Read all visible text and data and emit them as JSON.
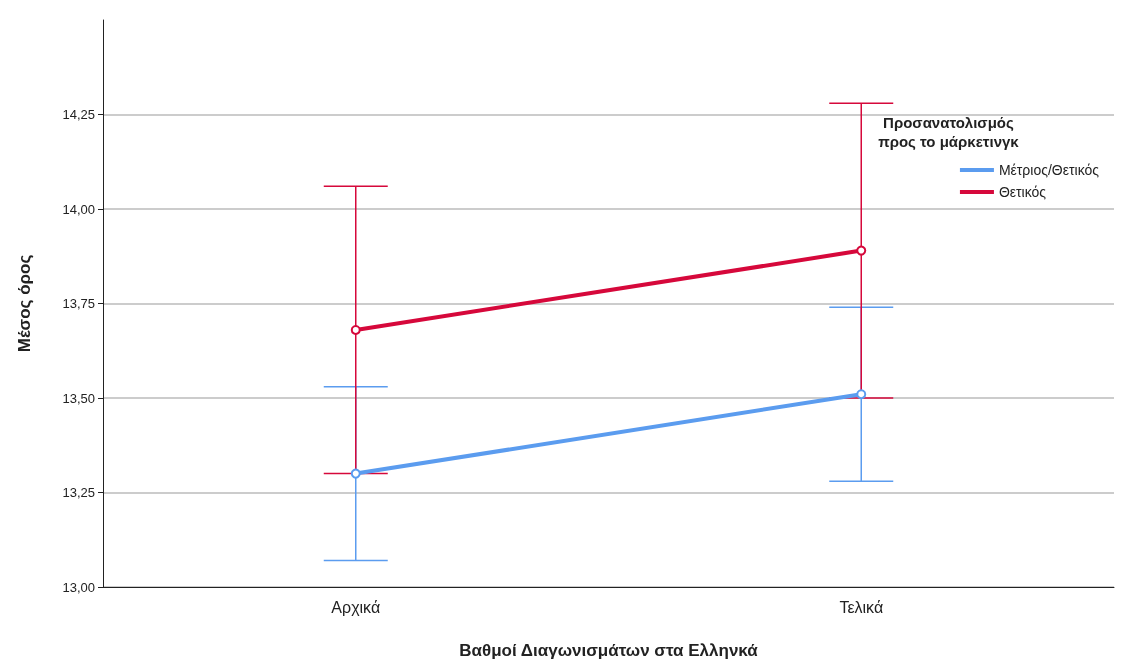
{
  "chart_data": {
    "type": "line",
    "xlabel": "Βαθμοί Διαγωνισμάτων στα Ελληνκά",
    "ylabel": "Μέσος όρος",
    "legend_title": "Προσανατολισμός\nπρος το μάρκετινγκ",
    "categories": [
      "Αρχικά",
      "Τελικά"
    ],
    "series": [
      {
        "name": "Μέτριος/Θετικός",
        "color": "#5b9cef",
        "values": [
          13.3,
          13.51
        ],
        "errors": [
          [
            13.07,
            13.53
          ],
          [
            13.28,
            13.74
          ]
        ]
      },
      {
        "name": "Θετικός",
        "color": "#d6083b",
        "values": [
          13.68,
          13.89
        ],
        "errors": [
          [
            13.3,
            14.06
          ],
          [
            13.5,
            14.28
          ]
        ]
      }
    ],
    "ylim": [
      13,
      14.5
    ],
    "yticks": [
      {
        "value": 13,
        "label": "13,00"
      },
      {
        "value": 13.25,
        "label": "13,25"
      },
      {
        "value": 13.5,
        "label": "13,50"
      },
      {
        "value": 13.75,
        "label": "13,75"
      },
      {
        "value": 14,
        "label": "14,00"
      },
      {
        "value": 14.25,
        "label": "14,25"
      }
    ],
    "grid": "y",
    "legend": "top right",
    "marker": "circle",
    "line_style": "solid"
  }
}
